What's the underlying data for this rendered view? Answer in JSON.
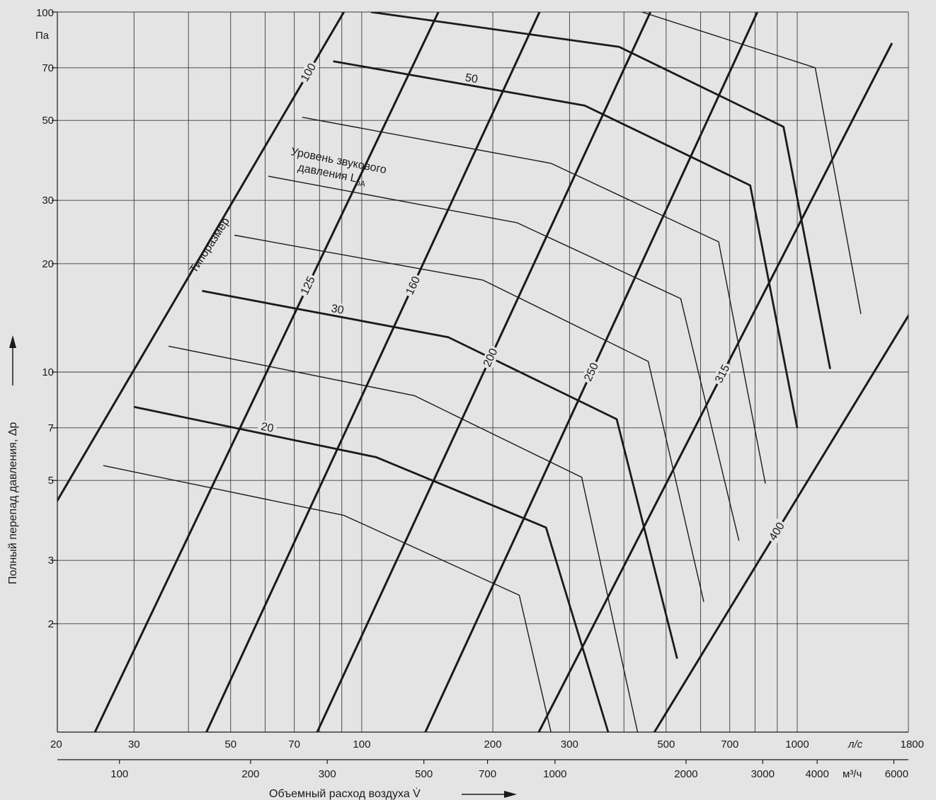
{
  "chart_data": {
    "type": "line",
    "title": "",
    "xlabel": "Объемный расход воздуха V̇",
    "ylabel": "Полный перепад давления, Δp",
    "x_scale": "log",
    "y_scale": "log",
    "xlim": [
      20,
      1800
    ],
    "ylim": [
      1,
      100
    ],
    "x_unit_primary": "л/с",
    "x_unit_secondary": "м³/ч",
    "y_unit": "Па",
    "x_ticks": [
      20,
      30,
      50,
      70,
      100,
      200,
      300,
      500,
      700,
      1000,
      1800
    ],
    "x_tick_labels": [
      "20",
      "30",
      "50",
      "70",
      "100",
      "200",
      "300",
      "500",
      "700",
      "1000",
      "1800"
    ],
    "x_grid": [
      20,
      30,
      40,
      50,
      60,
      70,
      80,
      90,
      100,
      200,
      300,
      400,
      500,
      600,
      700,
      800,
      900,
      1000
    ],
    "x2_ticks": [
      100,
      200,
      300,
      500,
      700,
      1000,
      2000,
      3000,
      4000,
      6000
    ],
    "x2_tick_labels": [
      "100",
      "200",
      "300",
      "500",
      "700",
      "1000",
      "2000",
      "3000",
      "4000",
      "6000"
    ],
    "y_ticks": [
      2,
      3,
      5,
      7,
      10,
      20,
      30,
      50,
      70,
      100
    ],
    "y_tick_labels": [
      "2",
      "3",
      "5",
      "7",
      "10",
      "20",
      "30",
      "50",
      "70",
      "100"
    ],
    "grid": true,
    "size_series": [
      {
        "name": "100",
        "points": [
          [
            19.1,
            4.0
          ],
          [
            91.0,
            100
          ]
        ]
      },
      {
        "name": "125",
        "points": [
          [
            24.4,
            1.0
          ],
          [
            150.0,
            100
          ]
        ]
      },
      {
        "name": "160",
        "points": [
          [
            44.0,
            1.0
          ],
          [
            256.0,
            100
          ]
        ]
      },
      {
        "name": "200",
        "points": [
          [
            79.0,
            1.0
          ],
          [
            460.0,
            100
          ]
        ]
      },
      {
        "name": "250",
        "points": [
          [
            140.0,
            1.0
          ],
          [
            810.0,
            100
          ]
        ]
      },
      {
        "name": "315",
        "points": [
          [
            255.0,
            1.0
          ],
          [
            1650.0,
            82
          ]
        ]
      },
      {
        "name": "400",
        "points": [
          [
            470.0,
            1.0
          ],
          [
            1810.0,
            14.5
          ]
        ]
      }
    ],
    "level_series": [
      {
        "name": "",
        "points": [
          [
            25.5,
            5.5
          ],
          [
            91.0,
            4.0
          ],
          [
            230.0,
            2.4
          ],
          [
            272.0,
            1.0
          ]
        ]
      },
      {
        "name": "20",
        "points": [
          [
            30.0,
            8.0
          ],
          [
            108.0,
            5.8
          ],
          [
            265.0,
            3.7
          ],
          [
            368.0,
            1.0
          ]
        ]
      },
      {
        "name": "",
        "points": [
          [
            36.0,
            11.8
          ],
          [
            132.0,
            8.6
          ],
          [
            320.0,
            5.1
          ],
          [
            430.0,
            1.0
          ]
        ]
      },
      {
        "name": "30",
        "points": [
          [
            43.0,
            16.8
          ],
          [
            158.0,
            12.5
          ],
          [
            385.0,
            7.4
          ],
          [
            530.0,
            1.6
          ]
        ]
      },
      {
        "name": "",
        "points": [
          [
            51.0,
            24.0
          ],
          [
            190.0,
            18.0
          ],
          [
            455.0,
            10.7
          ],
          [
            610.0,
            2.3
          ]
        ]
      },
      {
        "name": "",
        "points": [
          [
            61.0,
            35.0
          ],
          [
            227.0,
            26.0
          ],
          [
            540.0,
            16.0
          ],
          [
            735.0,
            3.4
          ]
        ]
      },
      {
        "name": "",
        "points": [
          [
            73.0,
            51.0
          ],
          [
            272.0,
            38.0
          ],
          [
            660.0,
            23.0
          ],
          [
            845.0,
            4.9
          ]
        ]
      },
      {
        "name": "50",
        "points": [
          [
            86.0,
            73.0
          ],
          [
            325.0,
            55.0
          ],
          [
            780.0,
            33.0
          ],
          [
            1000.0,
            7.0
          ]
        ]
      },
      {
        "name": "",
        "points": [
          [
            105.0,
            100.0
          ],
          [
            390.0,
            80.0
          ],
          [
            930.0,
            48.0
          ],
          [
            1190.0,
            10.2
          ]
        ]
      },
      {
        "name": "",
        "points": [
          [
            440.0,
            100.0
          ],
          [
            1100.0,
            70.0
          ],
          [
            1400.0,
            14.5
          ]
        ]
      },
      {
        "name": "",
        "points": [
          [
            1750.0,
            18.0
          ]
        ]
      }
    ],
    "annotations": {
      "size_label": "Типоразмер",
      "level_label_line1": "Уровень звукового",
      "level_label_line2": "давления  L",
      "level_label_sub": "pA"
    }
  }
}
